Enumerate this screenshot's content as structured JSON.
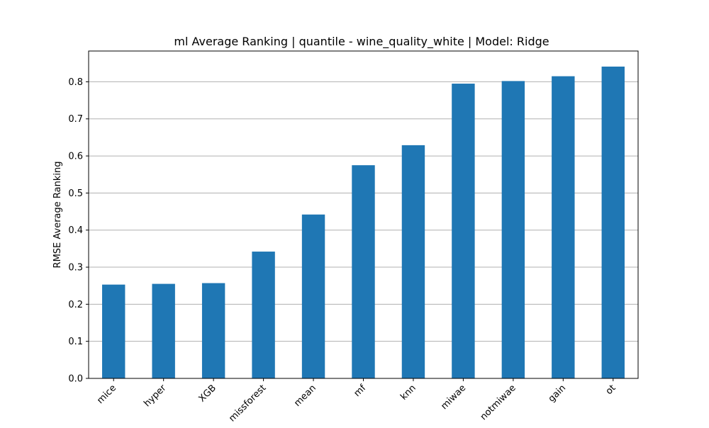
{
  "chart_data": {
    "type": "bar",
    "title": "ml Average Ranking | quantile - wine_quality_white | Model: Ridge",
    "xlabel": "",
    "ylabel": "RMSE Average Ranking",
    "categories": [
      "mice",
      "hyper",
      "XGB",
      "missforest",
      "mean",
      "mf",
      "knn",
      "miwae",
      "notmiwae",
      "gain",
      "ot"
    ],
    "values": [
      0.253,
      0.255,
      0.257,
      0.342,
      0.442,
      0.575,
      0.629,
      0.795,
      0.802,
      0.815,
      0.841
    ],
    "ylim": [
      0,
      0.883
    ],
    "yticks": [
      0.0,
      0.1,
      0.2,
      0.3,
      0.4,
      0.5,
      0.6,
      0.7,
      0.8
    ],
    "ytick_labels": [
      "0.0",
      "0.1",
      "0.2",
      "0.3",
      "0.4",
      "0.5",
      "0.6",
      "0.7",
      "0.8"
    ],
    "grid": "y",
    "bar_color": "#1f77b4"
  }
}
